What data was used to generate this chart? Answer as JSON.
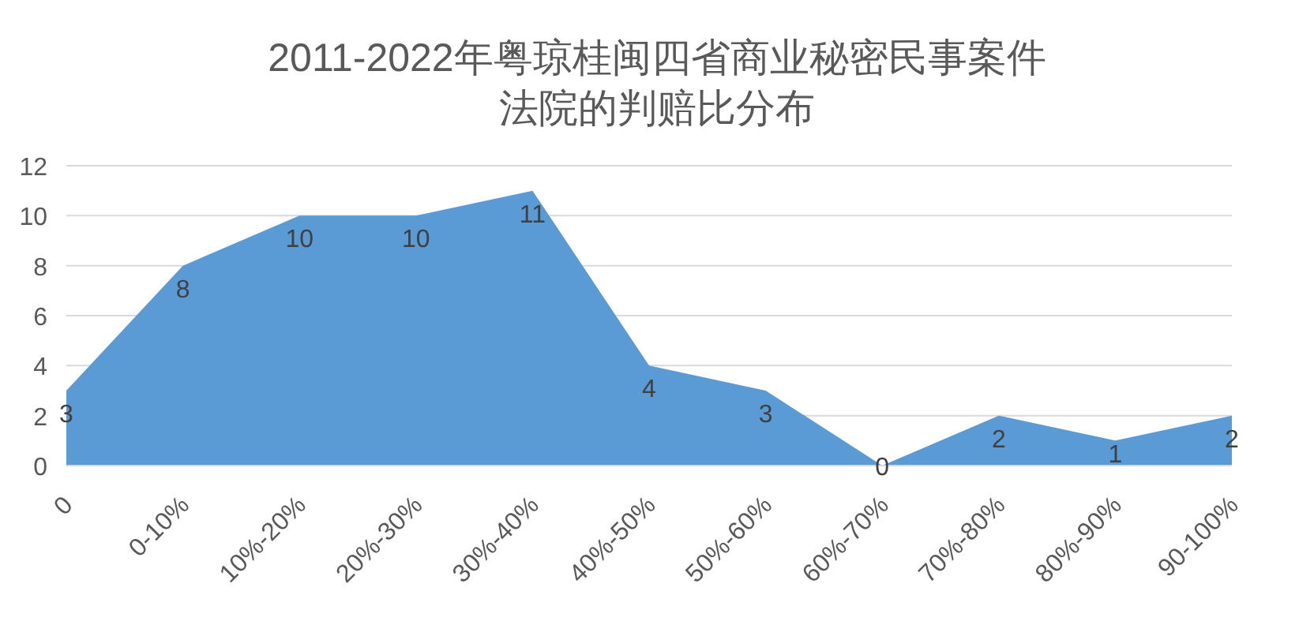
{
  "chart_data": {
    "type": "area",
    "title": "2011-2022年粤琼桂闽四省商业秘密民事案件法院的判赔比分布",
    "categories": [
      "0",
      "0-10%",
      "10%-20%",
      "20%-30%",
      "30%-40%",
      "40%-50%",
      "50%-60%",
      "60%-70%",
      "70%-80%",
      "80%-90%",
      "90-100%"
    ],
    "values": [
      3,
      8,
      10,
      10,
      11,
      4,
      3,
      0,
      2,
      1,
      2
    ],
    "color": "#5b9bd5",
    "ylim": [
      0,
      12
    ],
    "yticks": [
      0,
      2,
      4,
      6,
      8,
      10,
      12
    ],
    "grid": "y",
    "data_labels": true
  }
}
